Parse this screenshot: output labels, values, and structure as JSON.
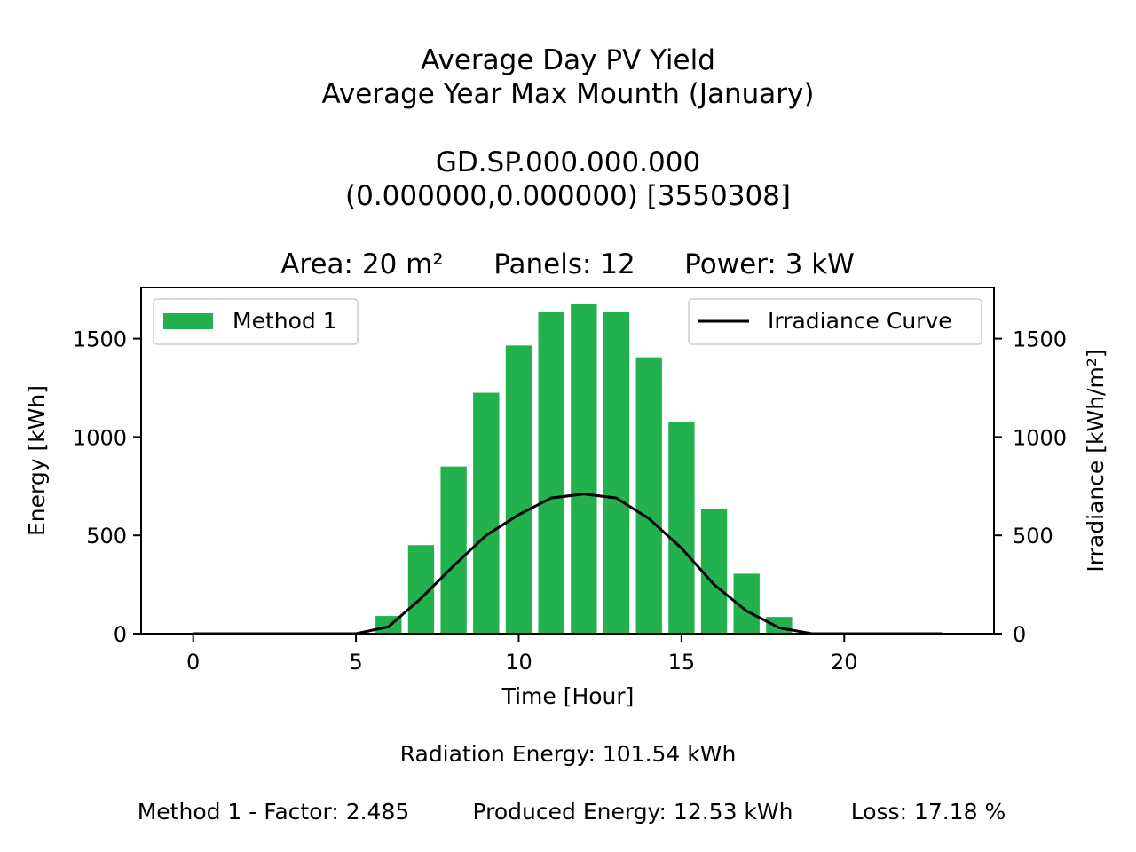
{
  "title_lines": [
    "Average Day PV Yield",
    "Average Year Max Mounth (January)",
    "GD.SP.000.000.000",
    "(0.000000,0.000000) [3550308]"
  ],
  "subtitle": {
    "area": "Area: 20 m²",
    "panels": "Panels: 12",
    "power": "Power: 3 kW"
  },
  "footer": {
    "radiation": "Radiation Energy: 101.54 kWh",
    "factor": "Method 1 - Factor: 2.485",
    "produced": "Produced Energy: 12.53 kWh",
    "loss": "Loss: 17.18 %"
  },
  "colors": {
    "bar": "#22b14c",
    "line": "#000000",
    "left_axis_label": "#22b14c"
  },
  "chart_data": {
    "type": "bar",
    "xlabel": "Time [Hour]",
    "ylabel_left": "Energy [kWh]",
    "ylabel_right": "Irradiance [kWh/m²]",
    "xlim": [
      -1.6,
      24.6
    ],
    "ylim_left": [
      0,
      1760
    ],
    "ylim_right": [
      0,
      1760
    ],
    "x_ticks": [
      0,
      5,
      10,
      15,
      20
    ],
    "y_ticks_left": [
      0,
      500,
      1000,
      1500
    ],
    "y_ticks_right": [
      0,
      500,
      1000,
      1500
    ],
    "grid": false,
    "series": [
      {
        "name": "Method 1",
        "kind": "bar",
        "axis": "left",
        "x": [
          0,
          1,
          2,
          3,
          4,
          5,
          6,
          7,
          8,
          9,
          10,
          11,
          12,
          13,
          14,
          15,
          16,
          17,
          18,
          19,
          20,
          21,
          22,
          23
        ],
        "values": [
          0,
          0,
          0,
          0,
          0,
          0,
          90,
          450,
          850,
          1225,
          1465,
          1635,
          1675,
          1635,
          1405,
          1075,
          635,
          305,
          85,
          0,
          0,
          0,
          0,
          0
        ]
      },
      {
        "name": "Irradiance Curve",
        "kind": "line",
        "axis": "right",
        "x": [
          0,
          1,
          2,
          3,
          4,
          5,
          6,
          7,
          8,
          9,
          10,
          11,
          12,
          13,
          14,
          15,
          16,
          17,
          18,
          19,
          20,
          21,
          22,
          23
        ],
        "values": [
          0,
          0,
          0,
          0,
          0,
          0,
          35,
          180,
          345,
          500,
          605,
          690,
          710,
          690,
          585,
          435,
          250,
          115,
          30,
          0,
          0,
          0,
          0,
          0
        ]
      }
    ],
    "legend_left_position": "upper-left",
    "legend_right_position": "upper-right"
  }
}
